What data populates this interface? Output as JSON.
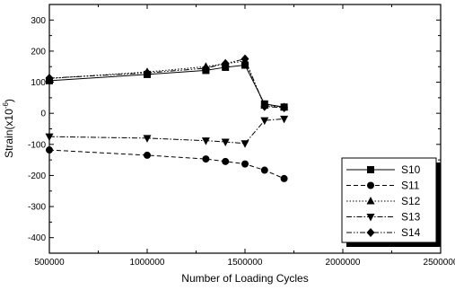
{
  "chart_data": {
    "type": "line",
    "title": "",
    "xlabel": "Number of Loading Cycles",
    "ylabel": "Strain(x10",
    "ylabel_sup": "-6",
    "ylabel_close": ")",
    "xlim": [
      500000,
      2500000
    ],
    "ylim": [
      -450,
      350
    ],
    "x_ticks": [
      500000,
      1000000,
      1500000,
      2000000,
      2500000
    ],
    "x_tick_labels": [
      "500000",
      "1000000",
      "1500000",
      "2000000",
      "2500000"
    ],
    "y_ticks": [
      -400,
      -300,
      -200,
      -100,
      0,
      100,
      200,
      300
    ],
    "y_tick_labels": [
      "-400",
      "-300",
      "-200",
      "-100",
      "0",
      "100",
      "200",
      "300"
    ],
    "grid": false,
    "legend_position": "bottom-right",
    "x": [
      500000,
      1000000,
      1300000,
      1400000,
      1500000,
      1600000,
      1700000
    ],
    "series": [
      {
        "name": "S10",
        "marker": "square",
        "dash": "solid",
        "values": [
          105,
          125,
          138,
          148,
          155,
          30,
          20
        ]
      },
      {
        "name": "S11",
        "marker": "circle",
        "dash": "dashed",
        "values": [
          -118,
          -135,
          -147,
          -155,
          -163,
          -183,
          -210
        ]
      },
      {
        "name": "S12",
        "marker": "triangle-up",
        "dash": "dotted",
        "values": [
          112,
          133,
          150,
          160,
          168,
          25,
          20
        ]
      },
      {
        "name": "S13",
        "marker": "triangle-down",
        "dash": "dashdot",
        "values": [
          -75,
          -80,
          -88,
          -92,
          -97,
          -23,
          -18
        ]
      },
      {
        "name": "S14",
        "marker": "diamond",
        "dash": "dashdotdot",
        "values": [
          113,
          130,
          145,
          160,
          175,
          22,
          18
        ]
      }
    ]
  }
}
